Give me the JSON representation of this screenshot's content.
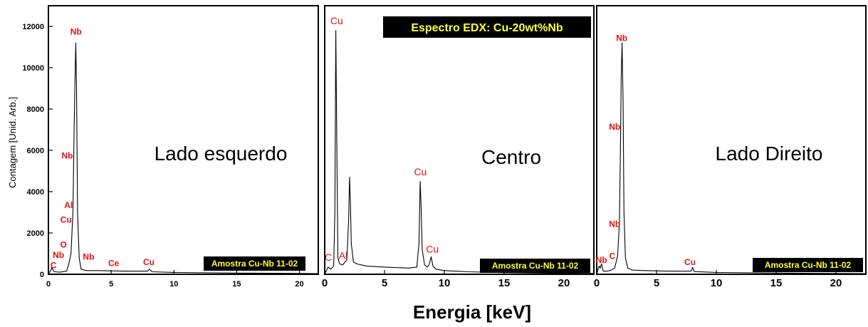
{
  "chart_data": {
    "type": "line",
    "title": "Espectro EDX: Cu-20wt%Nb",
    "xlabel": "Energia  [keV]",
    "ylabel": "Contagem [Unid. Arb.]",
    "yticks": [
      0,
      2000,
      4000,
      6000,
      8000,
      10000,
      12000
    ],
    "xticks": [
      0,
      5,
      10,
      15,
      20
    ],
    "grid": false,
    "panels": [
      {
        "name": "Lado esquerdo",
        "sample": "Amostra Cu-Nb 11-02",
        "xlim": [
          0,
          21.5
        ],
        "ylim": [
          0,
          13000
        ],
        "x": [
          0,
          0.2,
          0.28,
          0.4,
          0.55,
          0.9,
          1.2,
          1.45,
          1.62,
          1.8,
          1.95,
          2.05,
          2.12,
          2.18,
          2.24,
          2.32,
          2.45,
          2.6,
          3.0,
          4.0,
          6.0,
          7.9,
          8.05,
          8.25,
          10,
          15,
          20,
          21.5
        ],
        "y": [
          0,
          200,
          350,
          150,
          120,
          100,
          130,
          160,
          500,
          1000,
          3000,
          7000,
          9500,
          11200,
          9000,
          3000,
          800,
          250,
          180,
          180,
          150,
          150,
          250,
          120,
          90,
          60,
          40,
          30
        ],
        "peaks": [
          {
            "label": "Nb",
            "x": 2.2,
            "y": 11600
          },
          {
            "label": "Nb",
            "x": 1.5,
            "y": 5600
          },
          {
            "label": "Al",
            "x": 1.6,
            "y": 3200
          },
          {
            "label": "Cu",
            "x": 1.4,
            "y": 2500
          },
          {
            "label": "O",
            "x": 1.2,
            "y": 1300
          },
          {
            "label": "Nb",
            "x": 0.8,
            "y": 800
          },
          {
            "label": "C",
            "x": 0.4,
            "y": 300
          },
          {
            "label": "Nb",
            "x": 3.2,
            "y": 700
          },
          {
            "label": "Ce",
            "x": 5.2,
            "y": 400
          },
          {
            "label": "Cu",
            "x": 8.0,
            "y": 450
          }
        ]
      },
      {
        "name": "Centro",
        "sample": "Amostra Cu-Nb 11-02",
        "xlim": [
          0,
          22.5
        ],
        "ylim": [
          0,
          13000
        ],
        "x": [
          0,
          0.28,
          0.5,
          0.75,
          0.85,
          0.93,
          1.02,
          1.1,
          1.25,
          1.5,
          1.85,
          2.0,
          2.08,
          2.15,
          2.22,
          2.4,
          2.7,
          3.5,
          5,
          7,
          7.7,
          7.88,
          7.98,
          8.05,
          8.15,
          8.35,
          8.6,
          8.75,
          8.9,
          9.05,
          9.3,
          10,
          12,
          15,
          20,
          22.5
        ],
        "y": [
          0,
          350,
          250,
          400,
          3000,
          11800,
          6000,
          800,
          500,
          450,
          700,
          2600,
          4700,
          3500,
          1500,
          600,
          500,
          400,
          350,
          300,
          350,
          1500,
          4500,
          3500,
          1200,
          450,
          350,
          500,
          850,
          400,
          250,
          180,
          120,
          80,
          50,
          40
        ],
        "peaks": [
          {
            "label": "Cu",
            "x": 1.0,
            "y": 12100
          },
          {
            "label": "Cu",
            "x": 8.0,
            "y": 4800
          },
          {
            "label": "Cu",
            "x": 9.0,
            "y": 1050
          },
          {
            "label": "C",
            "x": 0.3,
            "y": 650
          },
          {
            "label": "Al",
            "x": 1.55,
            "y": 750
          }
        ]
      },
      {
        "name": "Lado Direito",
        "sample": "Amostra Cu-Nb 11-02",
        "xlim": [
          0,
          22.5
        ],
        "ylim": [
          0,
          13000
        ],
        "x": [
          0,
          0.2,
          0.3,
          0.4,
          0.55,
          0.9,
          1.2,
          1.5,
          1.75,
          1.9,
          1.98,
          2.05,
          2.12,
          2.2,
          2.28,
          2.4,
          2.6,
          3.0,
          4.0,
          6.0,
          7.9,
          8.02,
          8.15,
          10,
          15,
          20,
          22.5
        ],
        "y": [
          0,
          400,
          300,
          500,
          150,
          150,
          200,
          300,
          900,
          2500,
          6000,
          9500,
          11200,
          8500,
          3000,
          800,
          300,
          200,
          180,
          150,
          150,
          330,
          130,
          90,
          60,
          40,
          30
        ],
        "peaks": [
          {
            "label": "Nb",
            "x": 2.1,
            "y": 11300
          },
          {
            "label": "Nb",
            "x": 1.5,
            "y": 7000
          },
          {
            "label": "Nb",
            "x": 1.5,
            "y": 2300
          },
          {
            "label": "Nb",
            "x": 0.4,
            "y": 550
          },
          {
            "label": "C",
            "x": 1.3,
            "y": 750
          },
          {
            "label": "Cu",
            "x": 7.8,
            "y": 450
          }
        ]
      }
    ]
  }
}
